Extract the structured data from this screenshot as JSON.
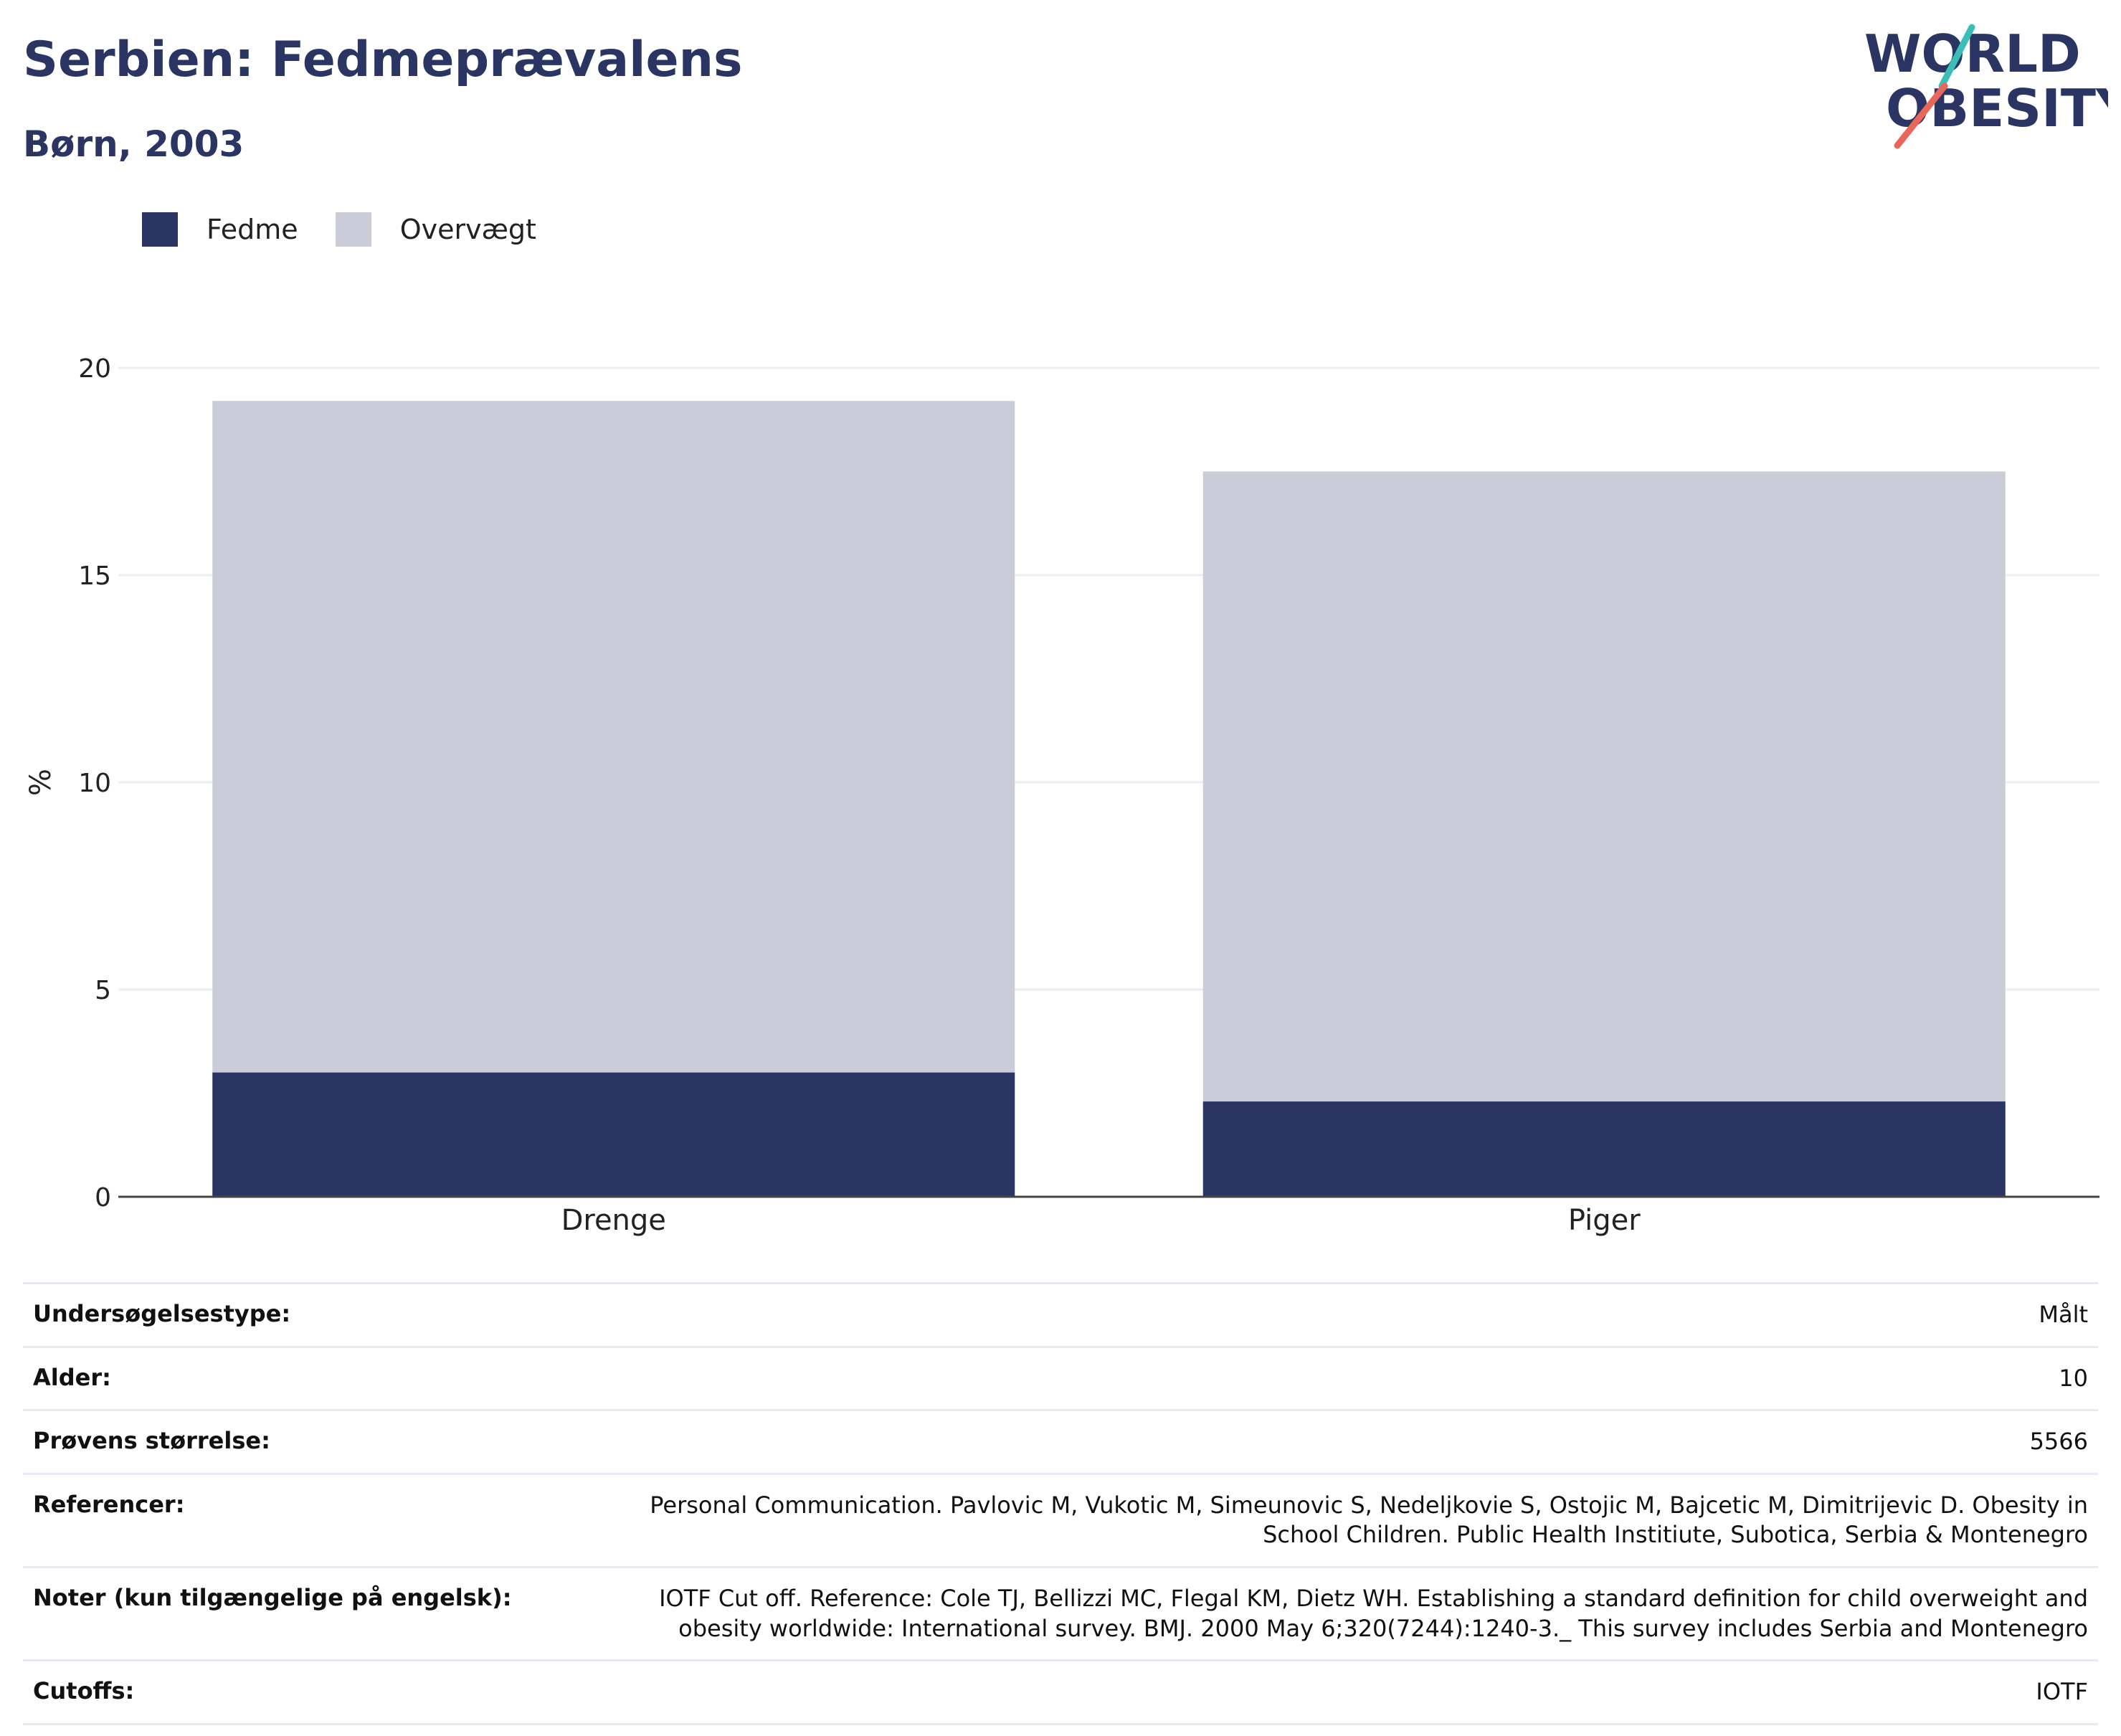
{
  "header": {
    "title": "Serbien: Fedmeprævalens",
    "subtitle": "Børn, 2003"
  },
  "logo": {
    "line1": "WORLD",
    "line2": "OBESITY"
  },
  "colors": {
    "fedme": "#2a3564",
    "overvaegt": "#cacdd8",
    "accent_teal": "#3bbdb8",
    "accent_red": "#e8675a"
  },
  "chart_data": {
    "type": "bar",
    "stacked": true,
    "categories": [
      "Drenge",
      "Piger"
    ],
    "series": [
      {
        "name": "Fedme",
        "values": [
          3.0,
          2.3
        ],
        "color": "#2a3564"
      },
      {
        "name": "Overvægt",
        "values": [
          16.2,
          15.2
        ],
        "color": "#cacdd8"
      }
    ],
    "ylabel": "%",
    "ylim": [
      0,
      20
    ],
    "yticks": [
      0,
      5,
      10,
      15,
      20
    ],
    "grid": true,
    "legend": "top-left"
  },
  "info": [
    {
      "label": "Undersøgelsestype:",
      "value": "Målt"
    },
    {
      "label": "Alder:",
      "value": "10"
    },
    {
      "label": "Prøvens størrelse:",
      "value": "5566"
    },
    {
      "label": "Referencer:",
      "value": "Personal Communication. Pavlovic M, Vukotic M, Simeunovic S, Nedeljkovie S, Ostojic M, Bajcetic M, Dimitrijevic D. Obesity in School Children. Public Health Institiute, Subotica, Serbia & Montenegro"
    },
    {
      "label": "Noter (kun tilgængelige på engelsk):",
      "value": "IOTF Cut off. Reference: Cole TJ, Bellizzi MC, Flegal KM, Dietz WH. Establishing a standard definition for child overweight and obesity worldwide: International survey. BMJ. 2000 May 6;320(7244):1240-3._ This survey includes Serbia and Montenegro"
    },
    {
      "label": "Cutoffs:",
      "value": "IOTF"
    }
  ]
}
